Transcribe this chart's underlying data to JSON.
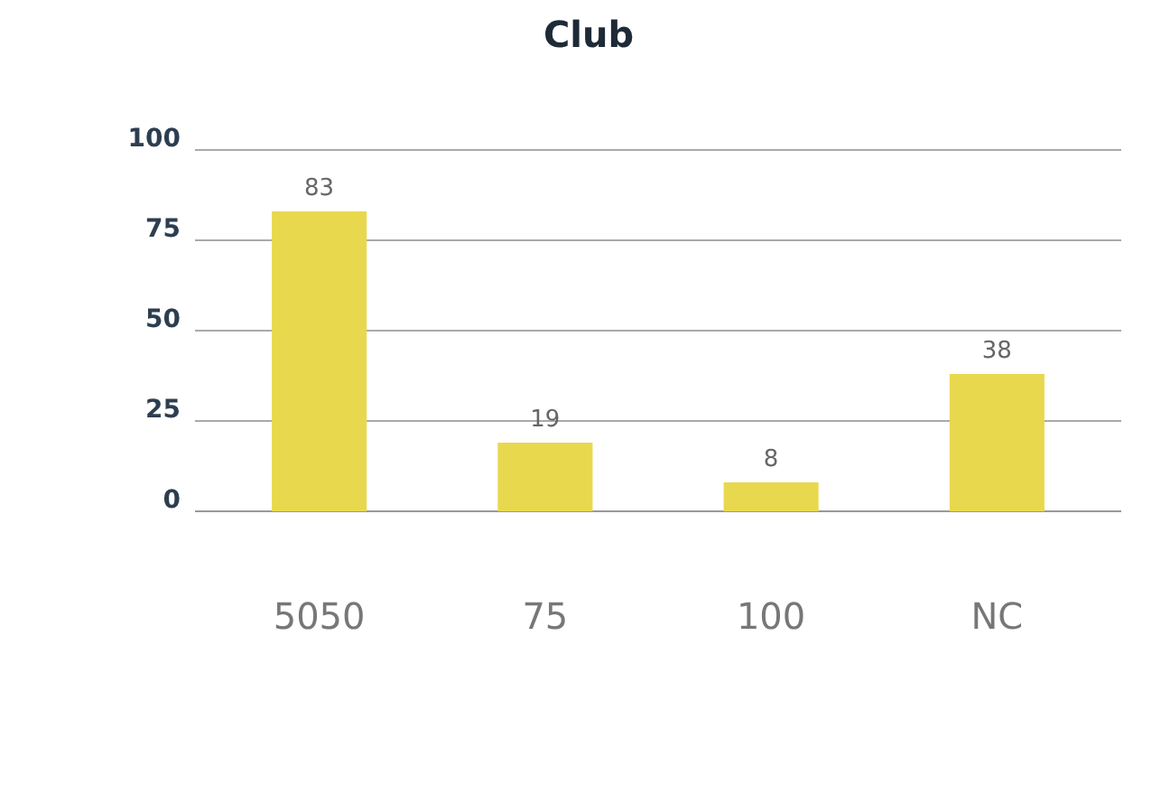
{
  "chart_data": {
    "type": "bar",
    "title": "Club",
    "categories": [
      "5050",
      "75",
      "100",
      "NC"
    ],
    "values": [
      83,
      19,
      8,
      38
    ],
    "color": "#e8d84e",
    "ylim": [
      0,
      100
    ],
    "yticks": [
      0,
      25,
      50,
      75,
      100
    ],
    "grid": "y",
    "data_labels": true
  }
}
